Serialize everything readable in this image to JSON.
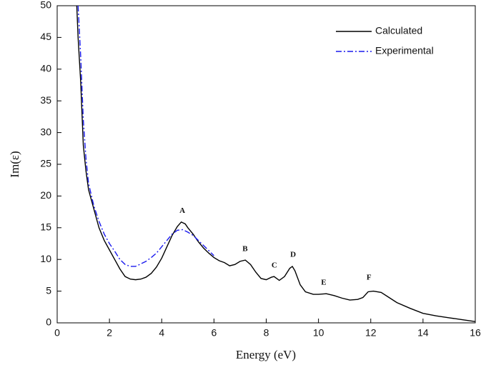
{
  "chart_data": {
    "type": "line",
    "xlabel": "Energy (eV)",
    "ylabel": "Im(ε)",
    "xlim": [
      0,
      16
    ],
    "ylim": [
      0,
      50
    ],
    "xticks": [
      0,
      2,
      4,
      6,
      8,
      10,
      12,
      14,
      16
    ],
    "yticks": [
      0,
      5,
      10,
      15,
      20,
      25,
      30,
      35,
      40,
      45,
      50
    ],
    "legend": "upper right",
    "series": [
      {
        "name": "Calculated",
        "color": "#000000",
        "style": "solid",
        "x": [
          0.75,
          0.8,
          0.9,
          1.0,
          1.1,
          1.2,
          1.4,
          1.6,
          1.8,
          2.0,
          2.2,
          2.4,
          2.6,
          2.8,
          3.0,
          3.2,
          3.4,
          3.6,
          3.8,
          4.0,
          4.2,
          4.4,
          4.6,
          4.75,
          4.9,
          5.0,
          5.2,
          5.4,
          5.6,
          5.8,
          6.0,
          6.2,
          6.4,
          6.6,
          6.8,
          7.0,
          7.2,
          7.4,
          7.6,
          7.8,
          8.0,
          8.2,
          8.3,
          8.5,
          8.7,
          8.9,
          9.0,
          9.1,
          9.3,
          9.5,
          9.8,
          10.0,
          10.3,
          10.6,
          10.9,
          11.2,
          11.5,
          11.7,
          11.9,
          12.1,
          12.4,
          12.7,
          13.0,
          13.5,
          14.0,
          14.5,
          15.0,
          15.5,
          16.0
        ],
        "values": [
          50,
          45,
          38,
          28,
          24,
          21,
          18,
          15,
          13,
          11.5,
          10,
          8.5,
          7.3,
          6.9,
          6.8,
          6.9,
          7.2,
          7.8,
          8.8,
          10.2,
          12,
          13.8,
          15.2,
          15.9,
          15.6,
          15,
          14,
          12.8,
          11.8,
          11,
          10.3,
          9.8,
          9.5,
          9.0,
          9.2,
          9.7,
          9.9,
          9.2,
          8,
          7.0,
          6.8,
          7.2,
          7.3,
          6.7,
          7.3,
          8.6,
          8.9,
          8.2,
          6.0,
          4.9,
          4.5,
          4.5,
          4.6,
          4.3,
          3.9,
          3.6,
          3.7,
          4.0,
          4.9,
          5.0,
          4.8,
          4.0,
          3.2,
          2.3,
          1.5,
          1.1,
          0.8,
          0.5,
          0.2
        ]
      },
      {
        "name": "Experimental",
        "color": "#1a1aee",
        "style": "dashdot",
        "x": [
          0.8,
          0.9,
          1.0,
          1.1,
          1.2,
          1.4,
          1.6,
          1.8,
          2.0,
          2.2,
          2.4,
          2.6,
          2.8,
          3.0,
          3.2,
          3.4,
          3.6,
          3.8,
          4.0,
          4.2,
          4.4,
          4.6,
          4.8,
          5.0,
          5.2,
          5.4,
          5.6,
          5.8,
          6.0
        ],
        "values": [
          50,
          42,
          32,
          26,
          22,
          18.5,
          16,
          14,
          12.5,
          11.3,
          10,
          9.2,
          8.9,
          8.9,
          9.3,
          9.7,
          10.3,
          11,
          12,
          13,
          14,
          14.6,
          14.7,
          14.3,
          13.8,
          13,
          12.2,
          11.4,
          10.6
        ]
      }
    ],
    "annotations": [
      {
        "text": "A",
        "x": 4.79,
        "y": 17.6
      },
      {
        "text": "B",
        "x": 7.19,
        "y": 11.6
      },
      {
        "text": "C",
        "x": 8.31,
        "y": 9.0
      },
      {
        "text": "D",
        "x": 9.03,
        "y": 10.7
      },
      {
        "text": "E",
        "x": 10.2,
        "y": 6.3
      },
      {
        "text": "F",
        "x": 11.93,
        "y": 7.1
      }
    ]
  }
}
